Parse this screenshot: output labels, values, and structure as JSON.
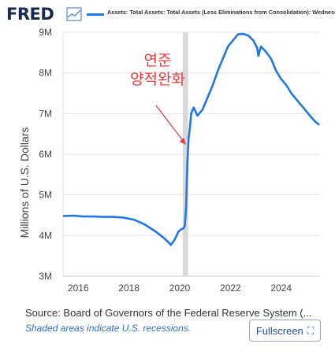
{
  "header": {
    "logo_text": "FRED",
    "legend_text": "Assets: Total Assets: Total Assets (Less Eliminations from Consolidation): Wednesday Level"
  },
  "source_text": "Source: Board of Governors of the Federal Reserve System (...",
  "recession_note": "Shaded areas indicate U.S. recessions.",
  "fullscreen_label": "Fullscreen",
  "colors": {
    "line": "#1f77e8",
    "recession": "#d9d9d9",
    "annotation": "#e53a3a"
  },
  "chart_data": {
    "type": "line",
    "ylabel": "Millions of U.S. Dollars",
    "ylim": [
      3000000,
      9000000
    ],
    "xlim": [
      2015.4,
      2025.5
    ],
    "yticks": [
      {
        "value": 3000000,
        "label": "3M"
      },
      {
        "value": 4000000,
        "label": "4M"
      },
      {
        "value": 5000000,
        "label": "5M"
      },
      {
        "value": 6000000,
        "label": "6M"
      },
      {
        "value": 7000000,
        "label": "7M"
      },
      {
        "value": 8000000,
        "label": "8M"
      },
      {
        "value": 9000000,
        "label": "9M"
      }
    ],
    "xticks": [
      {
        "value": 2016,
        "label": "2016"
      },
      {
        "value": 2018,
        "label": "2018"
      },
      {
        "value": 2020,
        "label": "2020"
      },
      {
        "value": 2022,
        "label": "2022"
      },
      {
        "value": 2024,
        "label": "2024"
      }
    ],
    "grid": true,
    "recessions": [
      [
        2020.12,
        2020.33
      ]
    ],
    "annotation": {
      "lines": [
        "연준",
        "양적완화"
      ]
    },
    "series": [
      {
        "x": [
          2015.4,
          2015.8,
          2016.2,
          2016.6,
          2017.0,
          2017.4,
          2017.8,
          2018.2,
          2018.6,
          2019.0,
          2019.3,
          2019.55,
          2019.65,
          2019.8,
          2019.95,
          2020.05,
          2020.15,
          2020.2,
          2020.25,
          2020.3,
          2020.35,
          2020.4,
          2020.45,
          2020.55,
          2020.7,
          2020.9,
          2021.1,
          2021.3,
          2021.5,
          2021.7,
          2021.9,
          2022.1,
          2022.3,
          2022.5,
          2022.7,
          2022.9,
          2023.05,
          2023.1,
          2023.2,
          2023.4,
          2023.6,
          2023.8,
          2024.0,
          2024.2,
          2024.4,
          2024.6,
          2024.8,
          2025.0,
          2025.2,
          2025.35,
          2025.5
        ],
        "y": [
          4480000,
          4490000,
          4470000,
          4470000,
          4460000,
          4460000,
          4440000,
          4390000,
          4280000,
          4120000,
          3980000,
          3840000,
          3770000,
          3900000,
          4100000,
          4150000,
          4180000,
          4240000,
          4700000,
          5800000,
          6400000,
          6650000,
          7000000,
          7150000,
          6950000,
          7100000,
          7400000,
          7700000,
          8050000,
          8350000,
          8650000,
          8800000,
          8950000,
          8960000,
          8920000,
          8800000,
          8620000,
          8420000,
          8650000,
          8520000,
          8350000,
          8050000,
          7850000,
          7700000,
          7500000,
          7350000,
          7200000,
          7050000,
          6900000,
          6800000,
          6720000
        ]
      }
    ]
  }
}
